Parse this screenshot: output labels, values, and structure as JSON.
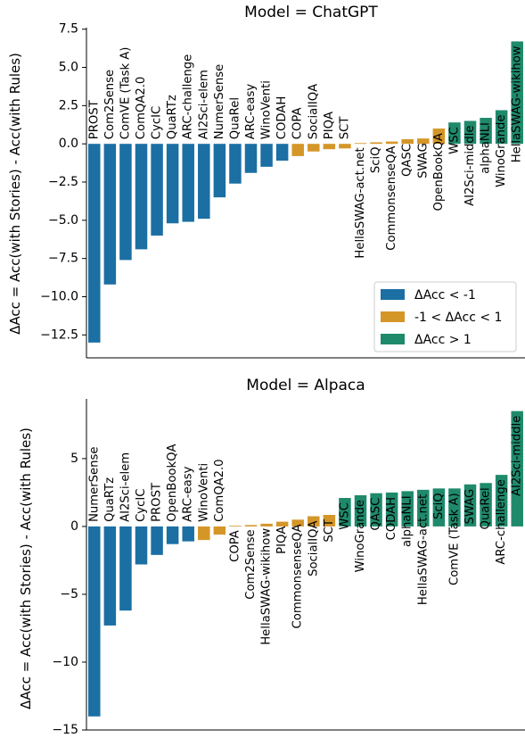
{
  "chart_data": [
    {
      "type": "bar",
      "title": "Model = ChatGPT",
      "xlabel": "",
      "ylabel": "ΔAcc = Acc(with Stories) - Acc(with Rules)",
      "ylim": [
        -14.0,
        7.6
      ],
      "yticks": [
        7.5,
        5.0,
        2.5,
        0.0,
        -2.5,
        -5.0,
        -7.5,
        -10.0,
        -12.5
      ],
      "ytick_labels": [
        "7.5",
        "5.0",
        "2.5",
        "0.0",
        "−2.5",
        "−5.0",
        "−7.5",
        "−10.0",
        "−12.5"
      ],
      "grid": false,
      "legend_position": "lower-right",
      "legend": [
        {
          "label": "ΔAcc < -1",
          "color": "#1b6fa3"
        },
        {
          "label": "-1 < ΔAcc < 1",
          "color": "#d59628"
        },
        {
          "label": "ΔAcc > 1",
          "color": "#1f8a6b"
        }
      ],
      "categories": [
        "PROST",
        "Com2Sense",
        "ComVE (Task A)",
        "ComQA2.0",
        "CycIC",
        "QuaRTz",
        "ARC-challenge",
        "AI2Sci-elem",
        "NumerSense",
        "QuaRel",
        "ARC-easy",
        "WinoVenti",
        "CODAH",
        "COPA",
        "SocialIQA",
        "PIQA",
        "SCT",
        "HellaSWAG-act.net",
        "SciQ",
        "CommonsenseQA",
        "QASC",
        "SWAG",
        "OpenBookQA",
        "WSC",
        "AI2Sci-middle",
        "alphaNLI",
        "WinoGrande",
        "HellaSWAG-wikihow"
      ],
      "values": [
        -13.0,
        -9.2,
        -7.6,
        -6.9,
        -6.0,
        -5.2,
        -5.1,
        -4.9,
        -3.5,
        -2.6,
        -1.9,
        -1.5,
        -1.1,
        -0.8,
        -0.5,
        -0.35,
        -0.3,
        0.05,
        0.1,
        0.15,
        0.3,
        0.35,
        1.0,
        1.4,
        1.5,
        1.7,
        2.2,
        6.7
      ]
    },
    {
      "type": "bar",
      "title": "Model = Alpaca",
      "xlabel": "",
      "ylabel": "ΔAcc = Acc(with Stories) - Acc(with Rules)",
      "ylim": [
        -15.0,
        9.4
      ],
      "yticks": [
        5,
        0,
        -5,
        -10,
        -15
      ],
      "ytick_labels": [
        "5",
        "0",
        "−5",
        "−10",
        "−15"
      ],
      "grid": false,
      "categories": [
        "NumerSense",
        "QuaRTz",
        "AI2Sci-elem",
        "CycIC",
        "PROST",
        "OpenBookQA",
        "ARC-easy",
        "WinoVenti",
        "ComQA2.0",
        "COPA",
        "Com2Sense",
        "HellaSWAG-wikihow",
        "PIQA",
        "CommonsenseQA",
        "SocialIQA",
        "SCT",
        "WSC",
        "WinoGrande",
        "QASC",
        "CODAH",
        "alphaNLI",
        "HellaSWAG-act.net",
        "SciQ",
        "ComVE (Task A)",
        "SWAG",
        "QuaRel",
        "ARC-challenge",
        "AI2Sci-middle"
      ],
      "values": [
        -14.0,
        -7.3,
        -6.2,
        -2.8,
        -2.1,
        -1.3,
        -1.1,
        -1.0,
        -0.6,
        0.05,
        0.1,
        0.2,
        0.35,
        0.5,
        0.75,
        0.85,
        2.1,
        2.3,
        2.45,
        2.5,
        2.6,
        2.7,
        2.8,
        2.8,
        3.1,
        3.2,
        3.8,
        8.5
      ]
    }
  ]
}
